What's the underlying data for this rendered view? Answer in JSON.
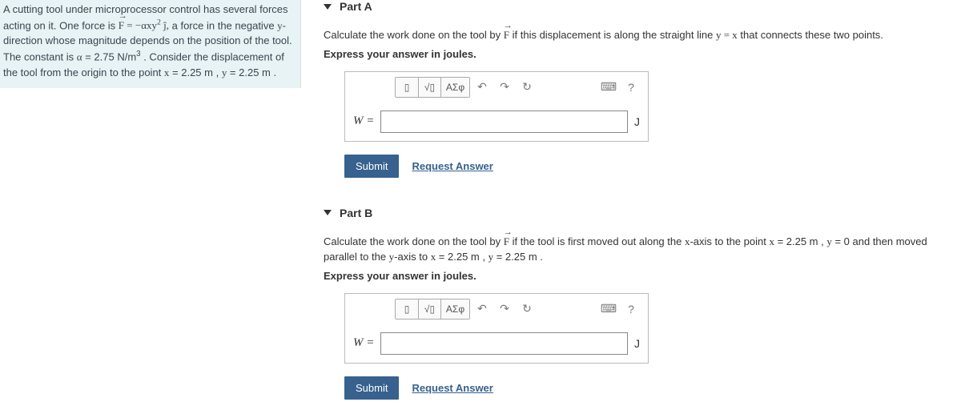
{
  "problem": {
    "text_html": "A cutting tool under microprocessor control has several forces acting on it. One force is <span class='math'><span class='vec'>F</span> = −αxy<sup>2</sup> ĵ,</span> a force in the negative <span class='math'>y</span>-direction whose magnitude depends on the position of the tool. The constant is <span class='math'>α</span> = 2.75 N/m<sup>3</sup> . Consider the displacement of the tool from the origin to the point <span class='math'>x</span> = 2.25 m , <span class='math'>y</span> = 2.25 m ."
  },
  "parts": {
    "a": {
      "title": "Part A",
      "question_html": "Calculate the work done on the tool by <span class='math'><span class='vec'>F</span></span> if this displacement is along the straight line <span class='math'>y = x</span> that connects these two points.",
      "instruction": "Express your answer in joules.",
      "var": "W =",
      "unit": "J",
      "submit": "Submit",
      "request": "Request Answer"
    },
    "b": {
      "title": "Part B",
      "question_html": "Calculate the work done on the tool by <span class='math'><span class='vec'>F</span></span> if the tool is first moved out along the <span class='math'>x</span>-axis to the point <span class='math'>x</span> = 2.25 m , <span class='math'>y</span> = 0 and then moved parallel to the <span class='math'>y</span>-axis to <span class='math'>x</span> = 2.25 m , <span class='math'>y</span> = 2.25 m .",
      "instruction": "Express your answer in joules.",
      "var": "W =",
      "unit": "J",
      "submit": "Submit",
      "request": "Request Answer"
    }
  },
  "toolbar": {
    "templates_label": "▯",
    "sqrt_label": "√▯",
    "greek_label": "ΑΣφ",
    "undo_label": "↶",
    "redo_label": "↷",
    "reset_label": "↻",
    "keyboard_label": "⌨",
    "help_label": "?"
  },
  "colors": {
    "left_bg": "#e7f3f5",
    "submit_bg": "#37618e",
    "link": "#37618e"
  }
}
